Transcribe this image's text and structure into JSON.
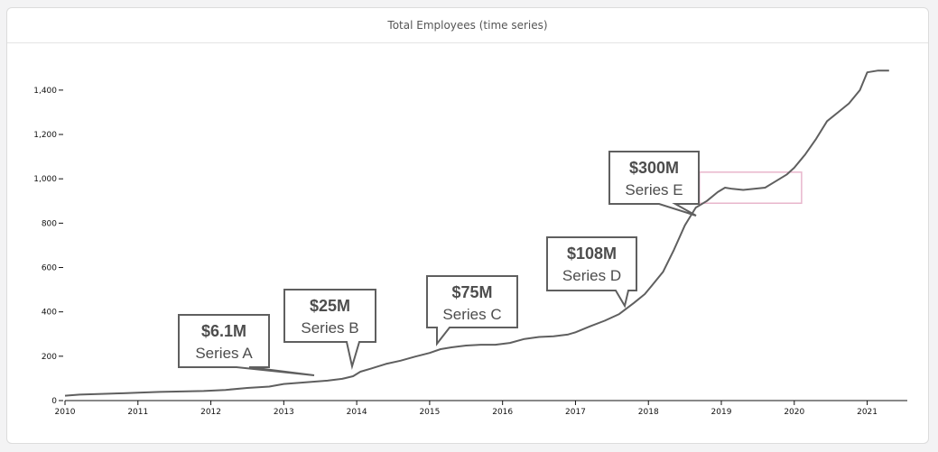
{
  "card": {
    "title": "Total Employees (time series)"
  },
  "colors": {
    "line": "#5f5f5f",
    "callout_border": "#5f5f5f",
    "highlight": "#e8b6cc",
    "axis": "#111111"
  },
  "chart_data": {
    "type": "line",
    "title": "Total Employees (time series)",
    "xlabel": "",
    "ylabel": "",
    "xlim": [
      2010.0,
      2021.55
    ],
    "ylim": [
      0,
      1550
    ],
    "x_ticks": [
      "2010",
      "2011",
      "2012",
      "2013",
      "2014",
      "2015",
      "2016",
      "2017",
      "2018",
      "2019",
      "2020",
      "2021"
    ],
    "y_ticks": [
      "0",
      "200",
      "400",
      "600",
      "800",
      "1,000",
      "1,200",
      "1,400"
    ],
    "grid": false,
    "series": [
      {
        "x": [
          2010.0,
          2010.2,
          2010.5,
          2010.8,
          2011.0,
          2011.3,
          2011.6,
          2011.9,
          2012.2,
          2012.5,
          2012.8,
          2013.0,
          2013.3,
          2013.6,
          2013.8,
          2013.95,
          2014.05,
          2014.2,
          2014.4,
          2014.6,
          2014.8,
          2015.0,
          2015.15,
          2015.3,
          2015.5,
          2015.7,
          2015.9,
          2016.1,
          2016.3,
          2016.5,
          2016.7,
          2016.9,
          2017.0,
          2017.2,
          2017.4,
          2017.6,
          2017.8,
          2017.95,
          2018.05,
          2018.2,
          2018.35,
          2018.5,
          2018.65,
          2018.8,
          2018.95,
          2019.05,
          2019.15,
          2019.3,
          2019.45,
          2019.6,
          2019.75,
          2019.9,
          2020.0,
          2020.15,
          2020.3,
          2020.45,
          2020.6,
          2020.75,
          2020.9,
          2021.0,
          2021.15,
          2021.3
        ],
        "y": [
          22,
          27,
          30,
          33,
          36,
          39,
          41,
          43,
          48,
          57,
          63,
          75,
          82,
          90,
          98,
          110,
          130,
          145,
          165,
          180,
          198,
          215,
          232,
          240,
          248,
          252,
          252,
          260,
          278,
          287,
          290,
          298,
          308,
          335,
          360,
          390,
          440,
          480,
          520,
          580,
          680,
          790,
          870,
          900,
          940,
          960,
          955,
          950,
          955,
          960,
          990,
          1020,
          1050,
          1110,
          1180,
          1260,
          1300,
          1340,
          1400,
          1480,
          1488,
          1488
        ]
      }
    ],
    "annotations": [
      {
        "amount": "$6.1M",
        "series": "Series A"
      },
      {
        "amount": "$25M",
        "series": "Series B"
      },
      {
        "amount": "$75M",
        "series": "Series C"
      },
      {
        "amount": "$108M",
        "series": "Series D"
      },
      {
        "amount": "$300M",
        "series": "Series E"
      }
    ],
    "highlight": {
      "x_range": [
        2018.7,
        2020.1
      ],
      "y_range": [
        890,
        1030
      ]
    }
  }
}
